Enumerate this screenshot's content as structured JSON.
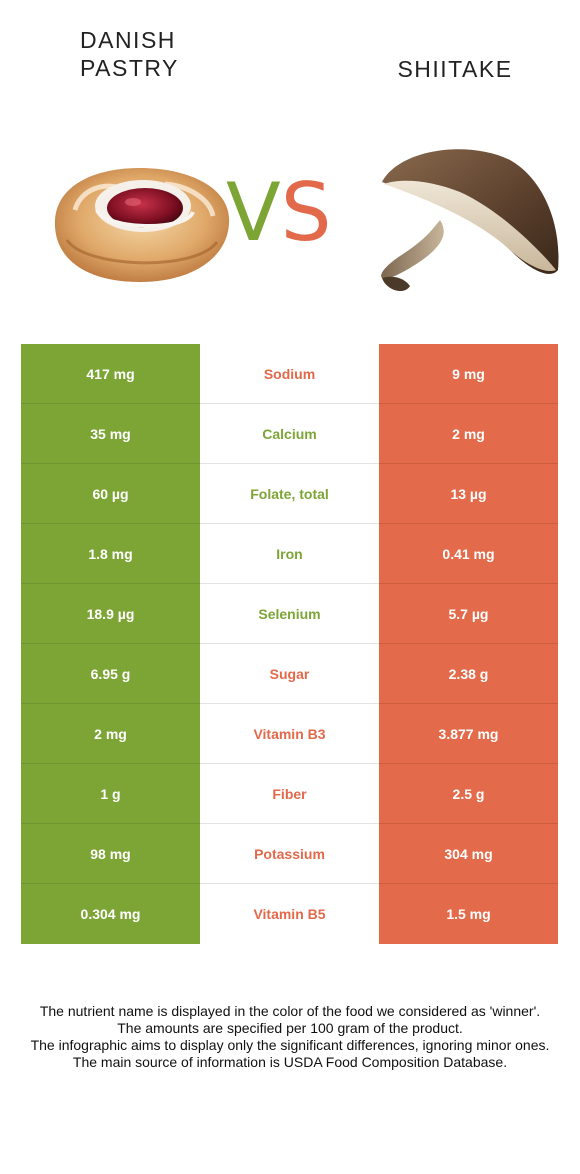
{
  "left_food": {
    "title_line1": "DANISH",
    "title_line2": "PASTRY",
    "color": "#7da536"
  },
  "right_food": {
    "title": "SHIITAKE",
    "color": "#e2694a"
  },
  "vs": {
    "v": "V",
    "s": "S"
  },
  "rows": [
    {
      "left": "417 mg",
      "nutrient": "Sodium",
      "right": "9 mg",
      "winner": "right"
    },
    {
      "left": "35 mg",
      "nutrient": "Calcium",
      "right": "2 mg",
      "winner": "left"
    },
    {
      "left": "60 µg",
      "nutrient": "Folate, total",
      "right": "13 µg",
      "winner": "left"
    },
    {
      "left": "1.8 mg",
      "nutrient": "Iron",
      "right": "0.41 mg",
      "winner": "left"
    },
    {
      "left": "18.9 µg",
      "nutrient": "Selenium",
      "right": "5.7 µg",
      "winner": "left"
    },
    {
      "left": "6.95 g",
      "nutrient": "Sugar",
      "right": "2.38 g",
      "winner": "right"
    },
    {
      "left": "2 mg",
      "nutrient": "Vitamin B3",
      "right": "3.877 mg",
      "winner": "right"
    },
    {
      "left": "1 g",
      "nutrient": "Fiber",
      "right": "2.5 g",
      "winner": "right"
    },
    {
      "left": "98 mg",
      "nutrient": "Potassium",
      "right": "304 mg",
      "winner": "right"
    },
    {
      "left": "0.304 mg",
      "nutrient": "Vitamin B5",
      "right": "1.5 mg",
      "winner": "right"
    }
  ],
  "footnote": {
    "line1": "The nutrient name is displayed in the color of the food we considered as 'winner'.",
    "line2": "The amounts are specified per 100 gram of the product.",
    "line3": "The infographic aims to display only the significant differences, ignoring minor ones.",
    "line4": "The main source of information is USDA Food Composition Database."
  }
}
